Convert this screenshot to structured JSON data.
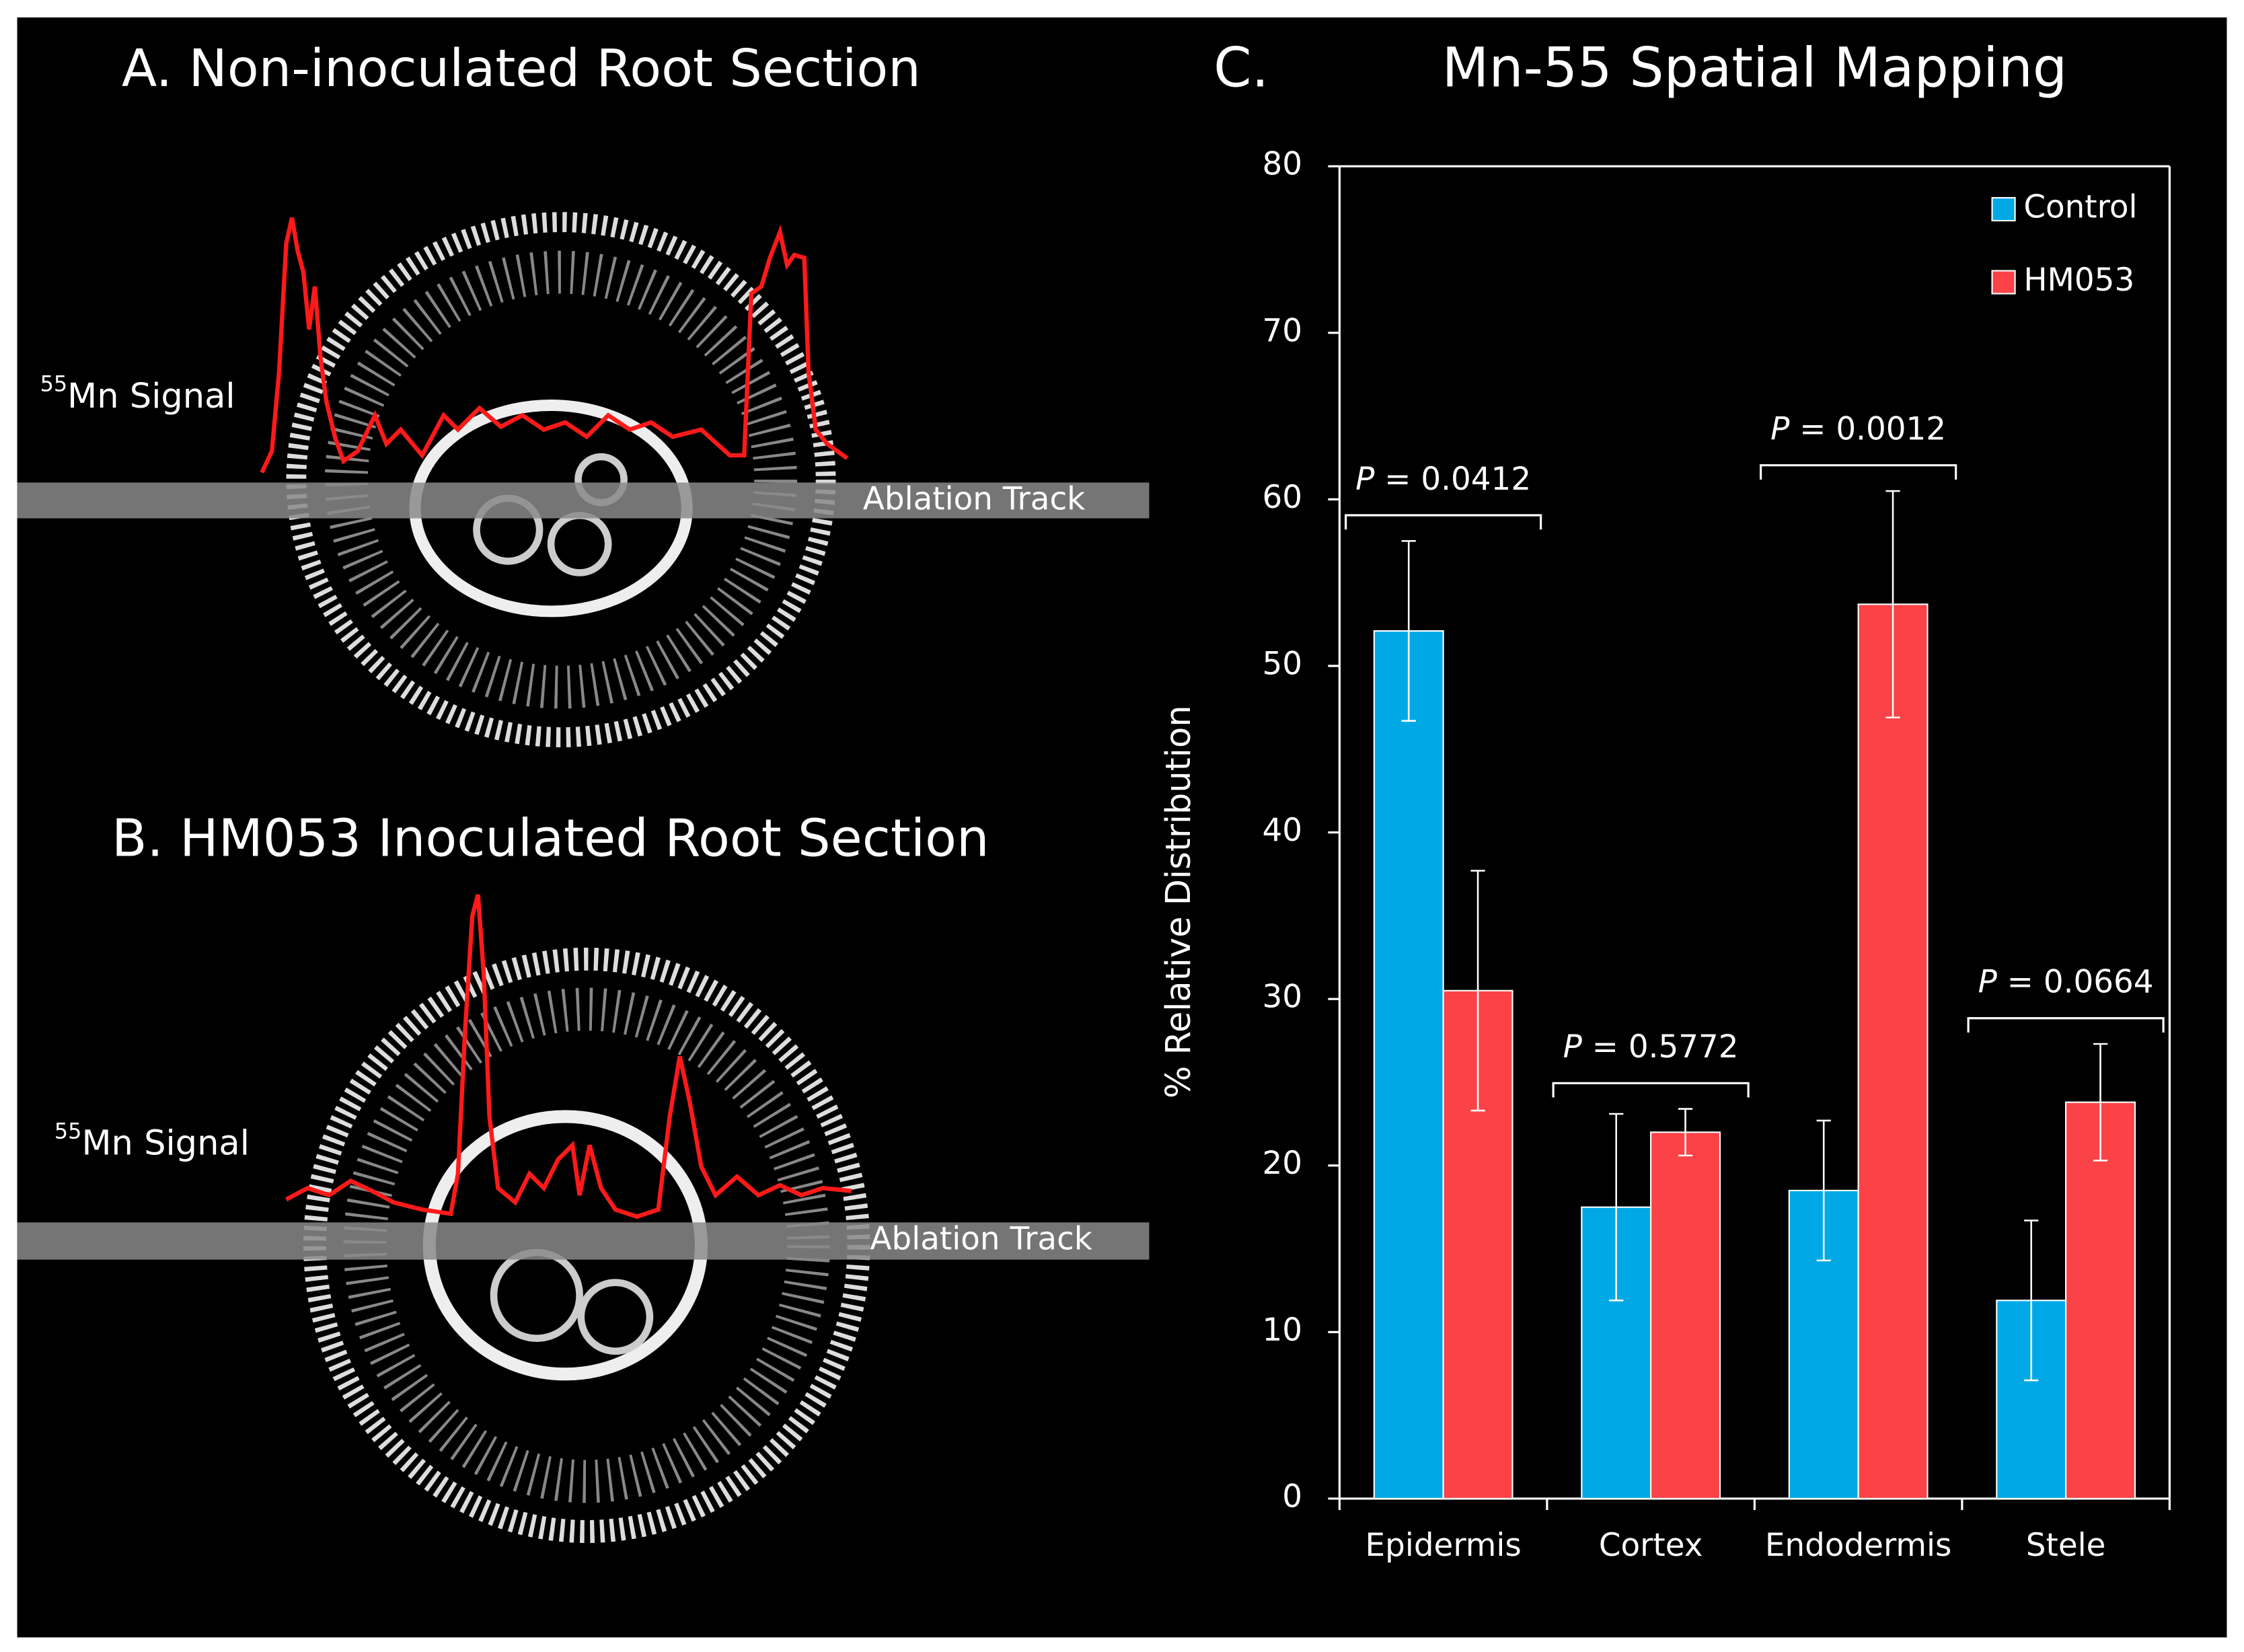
{
  "panel_a": {
    "title": "A.  Non-inoculated Root Section",
    "signal_isotope": "55",
    "signal_label": "Mn Signal",
    "track_label": "Ablation Track"
  },
  "panel_b": {
    "title": "B.  HM053 Inoculated Root Section",
    "signal_isotope": "55",
    "signal_label": "Mn Signal",
    "track_label": "Ablation Track"
  },
  "chart_data": {
    "type": "bar",
    "panel_label": "C.",
    "title": "Mn-55 Spatial Mapping",
    "y_label": "% Relative Distribution",
    "categories": [
      "Epidermis",
      "Cortex",
      "Endodermis",
      "Stele"
    ],
    "series": [
      {
        "name": "Control",
        "color": "#00a9e6",
        "values": [
          52.1,
          17.5,
          18.5,
          11.9
        ],
        "errors": [
          5.4,
          5.6,
          4.2,
          4.8
        ]
      },
      {
        "name": "HM053",
        "color": "#fb4246",
        "values": [
          30.5,
          22.0,
          53.7,
          23.8
        ],
        "errors": [
          7.2,
          1.4,
          6.8,
          3.5
        ]
      }
    ],
    "annotations": [
      {
        "symbol": "P",
        "text": " = 0.0412"
      },
      {
        "symbol": "P",
        "text": " = 0.5772"
      },
      {
        "symbol": "P",
        "text": " = 0.0012"
      },
      {
        "symbol": "P",
        "text": " = 0.0664"
      }
    ],
    "ylim": [
      0,
      80
    ],
    "yticks": [
      0,
      10,
      20,
      30,
      40,
      50,
      60,
      70,
      80
    ],
    "legend": "upper right",
    "error_bar_color": "#ffffff"
  }
}
